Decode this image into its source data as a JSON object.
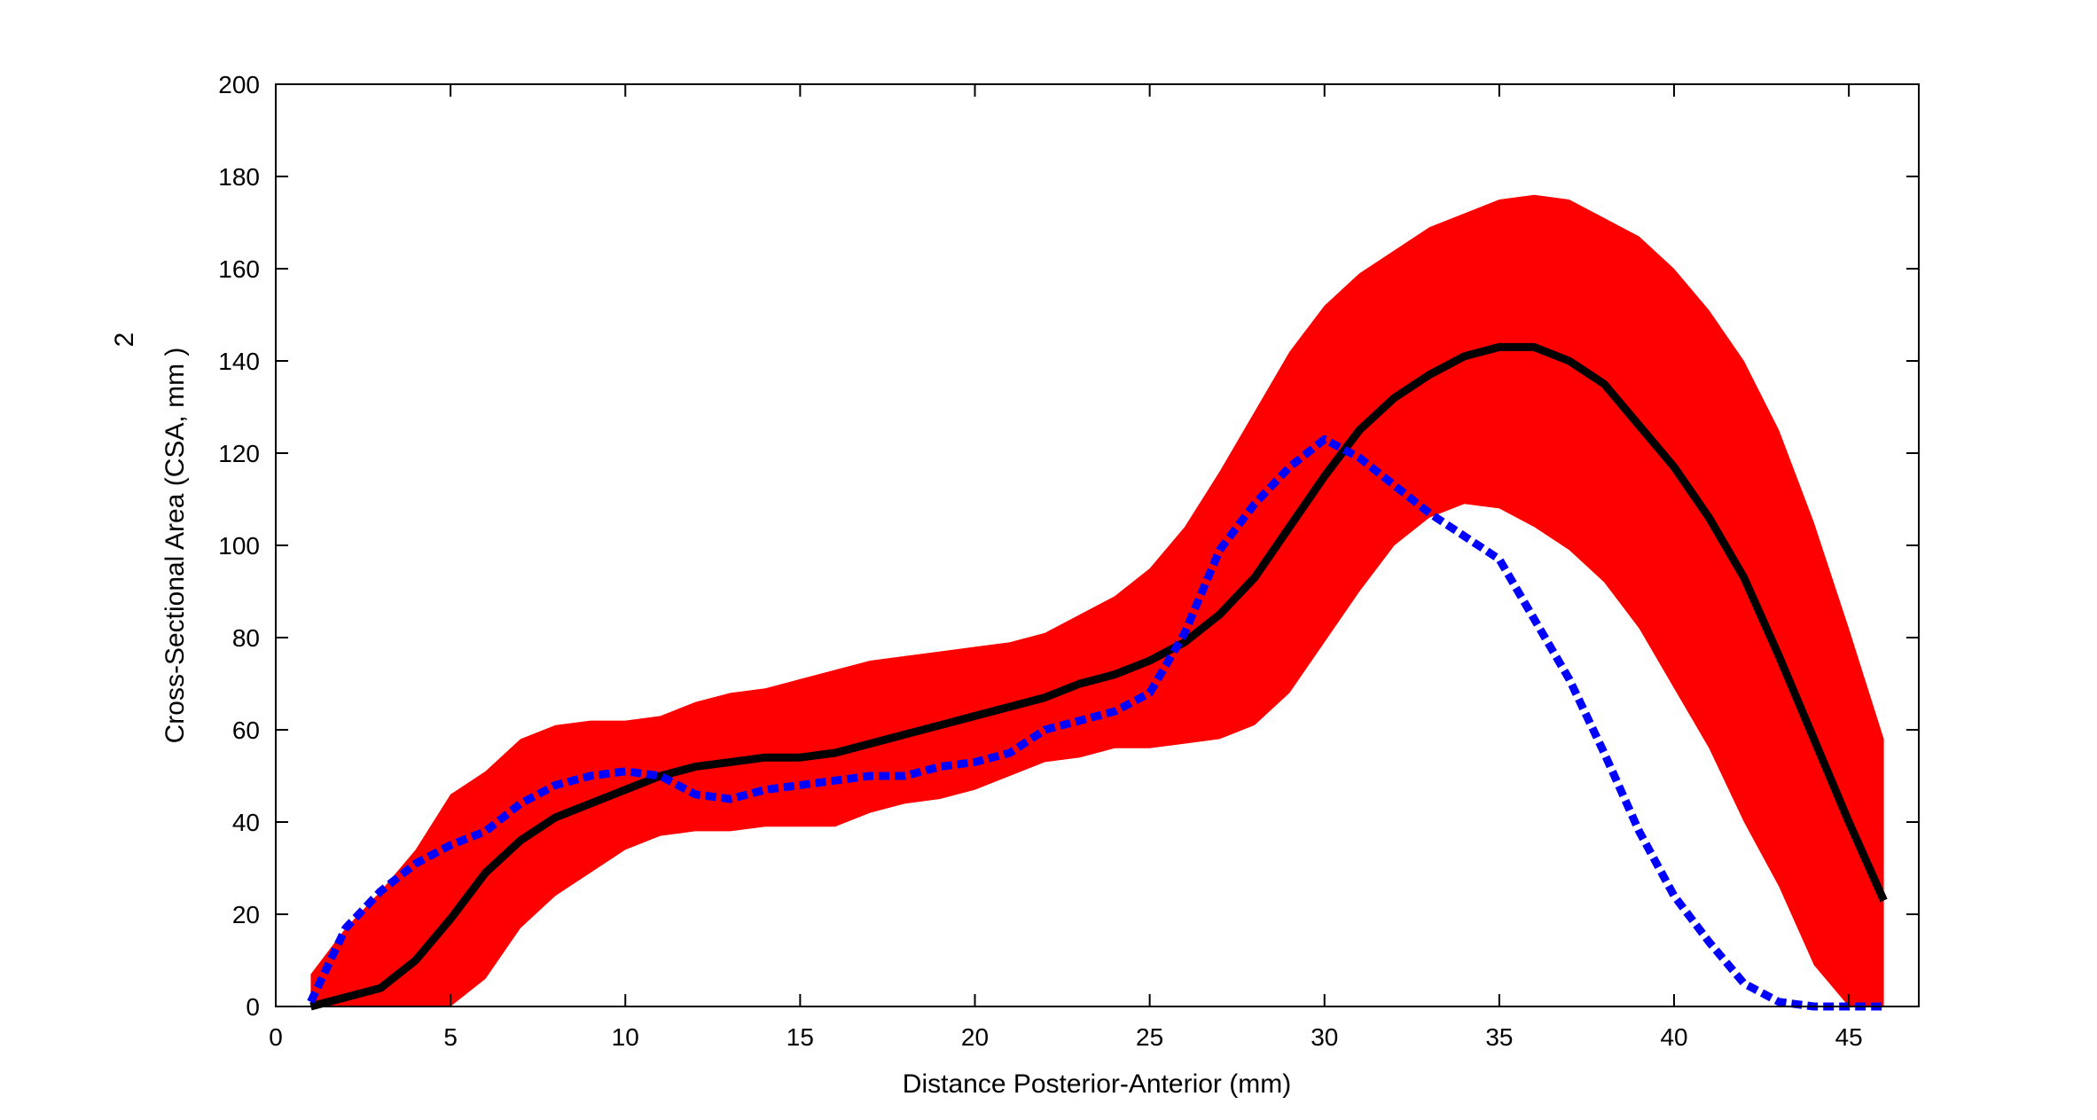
{
  "chart_data": {
    "type": "line",
    "title": "",
    "xlabel": "Distance Posterior-Anterior (mm)",
    "ylabel": "Cross-Sectional Area (CSA, mm  )",
    "ylabel_superscript": "2",
    "xlim": [
      0,
      47
    ],
    "ylim": [
      0,
      200
    ],
    "xticks": [
      0,
      5,
      10,
      15,
      20,
      25,
      30,
      35,
      40,
      45
    ],
    "yticks": [
      0,
      20,
      40,
      60,
      80,
      100,
      120,
      140,
      160,
      180,
      200
    ],
    "grid": false,
    "legend": "none",
    "x": [
      1,
      2,
      3,
      4,
      5,
      6,
      7,
      8,
      9,
      10,
      11,
      12,
      13,
      14,
      15,
      16,
      17,
      18,
      19,
      20,
      21,
      22,
      23,
      24,
      25,
      26,
      27,
      28,
      29,
      30,
      31,
      32,
      33,
      34,
      35,
      36,
      37,
      38,
      39,
      40,
      41,
      42,
      43,
      44,
      45,
      46
    ],
    "band": {
      "name": "range",
      "color": "#ff0000",
      "upper": [
        7,
        17,
        25,
        34,
        46,
        51,
        58,
        61,
        62,
        62,
        63,
        66,
        68,
        69,
        71,
        73,
        75,
        76,
        77,
        78,
        79,
        81,
        85,
        89,
        95,
        104,
        116,
        129,
        142,
        152,
        159,
        164,
        169,
        172,
        175,
        176,
        175,
        171,
        167,
        160,
        151,
        140,
        125,
        105,
        82,
        58
      ],
      "lower": [
        0,
        0,
        0,
        0,
        0,
        6,
        17,
        24,
        29,
        34,
        37,
        38,
        38,
        39,
        39,
        39,
        42,
        44,
        45,
        47,
        50,
        53,
        54,
        56,
        56,
        57,
        58,
        61,
        68,
        79,
        90,
        100,
        106,
        109,
        108,
        104,
        99,
        92,
        82,
        69,
        56,
        40,
        26,
        9,
        0,
        0
      ]
    },
    "series": [
      {
        "name": "mean",
        "color": "#000000",
        "style": "solid",
        "values": [
          0,
          2,
          4,
          10,
          19,
          29,
          36,
          41,
          44,
          47,
          50,
          52,
          53,
          54,
          54,
          55,
          57,
          59,
          61,
          63,
          65,
          67,
          70,
          72,
          75,
          79,
          85,
          93,
          104,
          115,
          125,
          132,
          137,
          141,
          143,
          143,
          140,
          135,
          126,
          117,
          106,
          93,
          76,
          58,
          40,
          23
        ]
      },
      {
        "name": "subject",
        "color": "#0000ff",
        "style": "dashed",
        "values": [
          1,
          17,
          25,
          31,
          35,
          38,
          44,
          48,
          50,
          51,
          50,
          46,
          45,
          47,
          48,
          49,
          50,
          50,
          52,
          53,
          55,
          60,
          62,
          64,
          68,
          81,
          99,
          109,
          117,
          123,
          119,
          113,
          107,
          102,
          97,
          84,
          71,
          55,
          38,
          24,
          14,
          5,
          1,
          0,
          0,
          0
        ]
      }
    ]
  }
}
